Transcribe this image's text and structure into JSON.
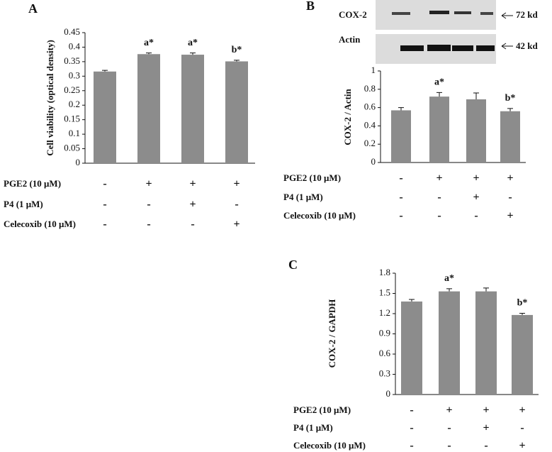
{
  "chart_data": [
    {
      "panel": "A",
      "type": "bar",
      "ylabel": "Cell viability (optical density)",
      "color": "#8c8c8c",
      "values": [
        0.316,
        0.376,
        0.374,
        0.351
      ],
      "errors": [
        0.004,
        0.004,
        0.006,
        0.004
      ],
      "annotations": [
        null,
        "a*",
        "a*",
        "b*"
      ],
      "ylim": [
        0,
        0.45
      ],
      "yticks": [
        0,
        0.05,
        0.1,
        0.15,
        0.2,
        0.25,
        0.3,
        0.35,
        0.4,
        0.45
      ],
      "conditions": [
        {
          "name": "PGE2 (10 μM)",
          "signs": [
            "-",
            "+",
            "+",
            "+"
          ]
        },
        {
          "name": "P4 (1 μM)",
          "signs": [
            "-",
            "-",
            "+",
            "-"
          ]
        },
        {
          "name": "Celecoxib (10 μM)",
          "signs": [
            "-",
            "-",
            "-",
            "+"
          ]
        }
      ]
    },
    {
      "panel": "B",
      "type": "bar",
      "ylabel": "COX-2 / Actin",
      "color": "#8c8c8c",
      "blot": [
        {
          "label": "COX-2",
          "size": "72 kd"
        },
        {
          "label": "Actin",
          "size": "42 kd"
        }
      ],
      "values": [
        0.57,
        0.72,
        0.69,
        0.56
      ],
      "errors": [
        0.03,
        0.045,
        0.07,
        0.03
      ],
      "annotations": [
        null,
        "a*",
        null,
        "b*"
      ],
      "ylim": [
        0,
        1
      ],
      "yticks": [
        0,
        0.2,
        0.4,
        0.6,
        0.8,
        1
      ],
      "conditions": [
        {
          "name": "PGE2 (10 μM)",
          "signs": [
            "-",
            "+",
            "+",
            "+"
          ]
        },
        {
          "name": "P4 (1 μM)",
          "signs": [
            "-",
            "-",
            "+",
            "-"
          ]
        },
        {
          "name": "Celecoxib (10  μM)",
          "signs": [
            "-",
            "-",
            "-",
            "+"
          ]
        }
      ]
    },
    {
      "panel": "C",
      "type": "bar",
      "ylabel": "COX-2 / GAPDH",
      "color": "#8c8c8c",
      "values": [
        1.38,
        1.53,
        1.53,
        1.18
      ],
      "errors": [
        0.03,
        0.04,
        0.05,
        0.025
      ],
      "annotations": [
        null,
        "a*",
        null,
        "b*"
      ],
      "ylim": [
        0,
        1.8
      ],
      "yticks": [
        0,
        0.3,
        0.6,
        0.9,
        1.2,
        1.5,
        1.8
      ],
      "conditions": [
        {
          "name": "PGE2 (10 μM)",
          "signs": [
            "-",
            "+",
            "+",
            "+"
          ]
        },
        {
          "name": "P4 (1 μM)",
          "signs": [
            "-",
            "-",
            "+",
            "-"
          ]
        },
        {
          "name": "Celecoxib (10 μM)",
          "signs": [
            "-",
            "-",
            "-",
            "+"
          ]
        }
      ]
    }
  ]
}
